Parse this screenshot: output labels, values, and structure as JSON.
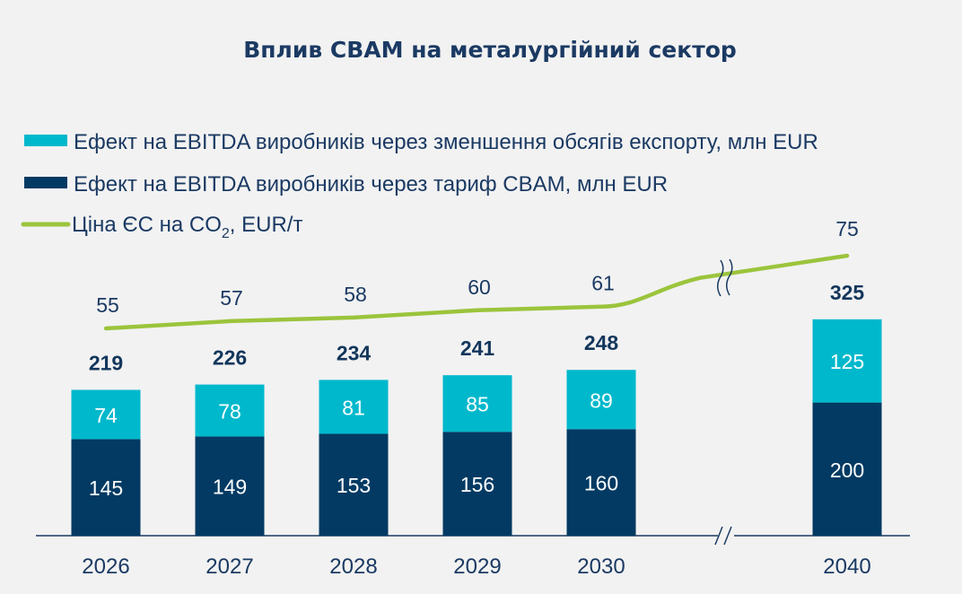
{
  "chart_data": {
    "type": "bar",
    "title": "Вплив CBAM на металургійний сектор",
    "categories": [
      "2026",
      "2027",
      "2028",
      "2029",
      "2030",
      "2040"
    ],
    "axis_break": "between 2030 and 2040",
    "series": [
      {
        "name": "Ефект на EBITDA виробників через тариф CBAM, млн EUR",
        "type": "bar",
        "stack": "main",
        "color": "#023a63",
        "values": [
          145,
          149,
          153,
          156,
          160,
          200
        ]
      },
      {
        "name": "Ефект на EBITDA виробників через зменшення обсягів експорту, млн EUR",
        "type": "bar",
        "stack": "main",
        "color": "#00b8cc",
        "values": [
          74,
          78,
          81,
          85,
          89,
          125
        ]
      },
      {
        "name": "Ціна ЄС на CO2, EUR/т",
        "name_main": "Ціна ЄС на CO",
        "name_sub": "2",
        "name_tail": ", EUR/т",
        "type": "line",
        "color": "#9bc43c",
        "values": [
          55,
          57,
          58,
          60,
          61,
          75
        ]
      }
    ],
    "totals": [
      219,
      226,
      234,
      241,
      248,
      325
    ],
    "legend": "top-left",
    "grid": false
  }
}
